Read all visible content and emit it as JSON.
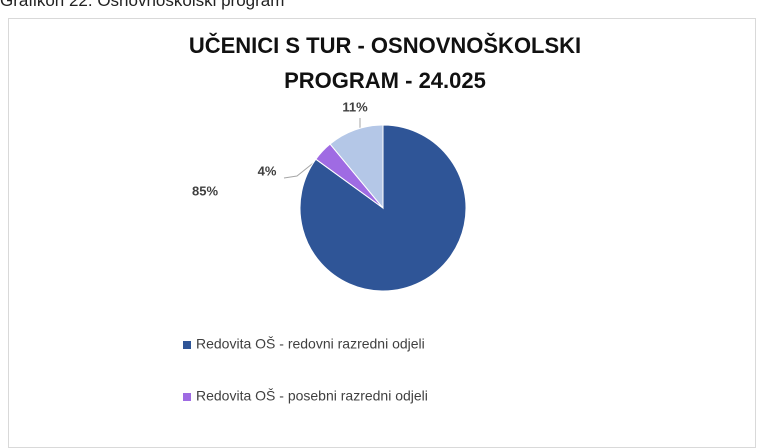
{
  "caption": "Grafikon 22. Osnovnoškolski program",
  "chart_data": {
    "type": "pie",
    "title": "UČENICI S TUR - OSNOVNOŠKOLSKI PROGRAM - 24.025",
    "categories": [
      "Redovita OŠ - redovni razredni odjeli",
      "Redovita OŠ - posebni razredni odjeli",
      null
    ],
    "values": [
      85,
      4,
      11
    ],
    "value_labels": [
      "85%",
      "4%",
      "11%"
    ],
    "colors": [
      "#2f5597",
      "#9f6be3",
      "#b4c7e7"
    ]
  }
}
